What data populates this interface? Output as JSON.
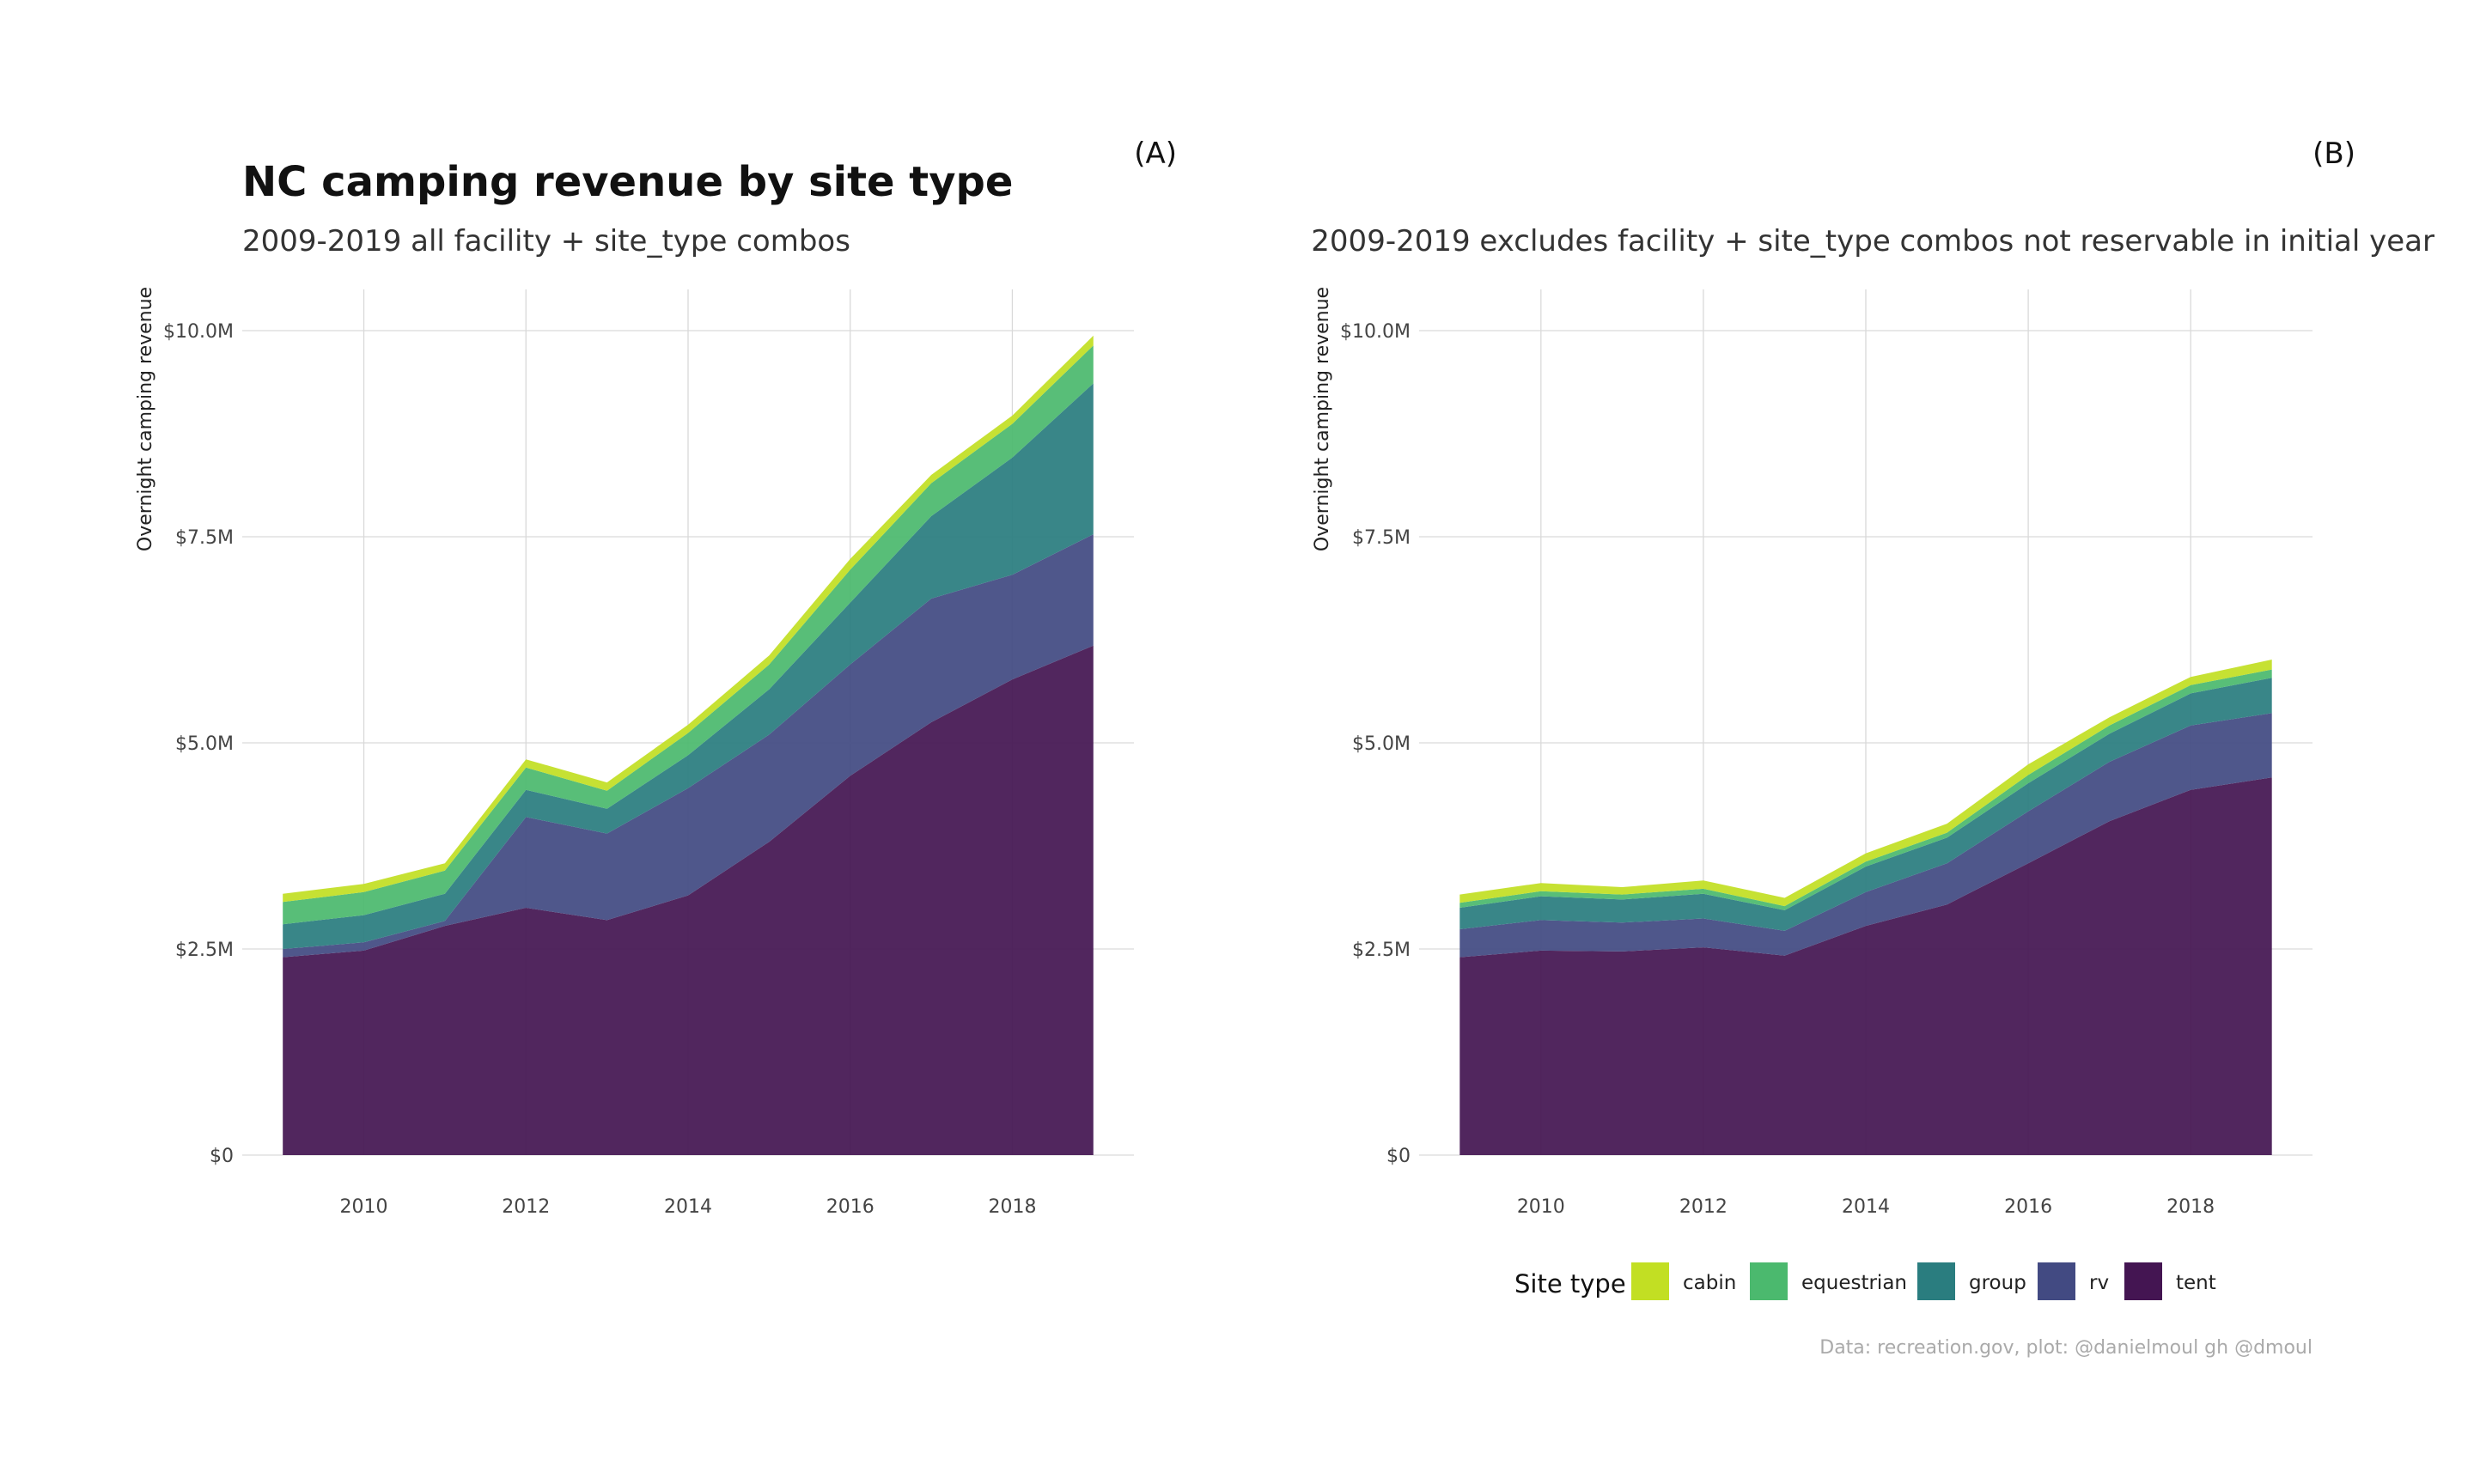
{
  "chart_data": [
    {
      "type": "area",
      "panel": "A",
      "tag": "(A)",
      "title": "NC camping revenue by site type",
      "subtitle": "2009-2019 all facility + site_type combos",
      "ylabel": "Overnight camping revenue",
      "xlabel": "",
      "ylim": [
        0,
        10.5
      ],
      "xlim": [
        2008.5,
        2019.5
      ],
      "x_ticks": [
        2010,
        2012,
        2014,
        2016,
        2018
      ],
      "y_ticks": [
        {
          "value": 0,
          "label": "$0"
        },
        {
          "value": 2.5,
          "label": "$2.5M"
        },
        {
          "value": 5,
          "label": "$5.0M"
        },
        {
          "value": 7.5,
          "label": "$7.5M"
        },
        {
          "value": 10,
          "label": "$10.0M"
        }
      ],
      "grid": true,
      "stacked": true,
      "units": "millions USD",
      "x": [
        2009,
        2010,
        2011,
        2012,
        2013,
        2014,
        2015,
        2016,
        2017,
        2018,
        2019
      ],
      "series": [
        {
          "name": "tent",
          "values": [
            2.4,
            2.48,
            2.78,
            3.0,
            2.85,
            3.15,
            3.8,
            4.6,
            5.25,
            5.77,
            6.18
          ]
        },
        {
          "name": "rv",
          "values": [
            0.1,
            0.1,
            0.06,
            1.1,
            1.05,
            1.3,
            1.3,
            1.35,
            1.5,
            1.27,
            1.35
          ]
        },
        {
          "name": "group",
          "values": [
            0.3,
            0.33,
            0.33,
            0.33,
            0.3,
            0.4,
            0.55,
            0.75,
            1.0,
            1.42,
            1.83
          ]
        },
        {
          "name": "equestrian",
          "values": [
            0.27,
            0.28,
            0.28,
            0.27,
            0.22,
            0.27,
            0.3,
            0.4,
            0.4,
            0.41,
            0.46
          ]
        },
        {
          "name": "cabin",
          "values": [
            0.1,
            0.1,
            0.09,
            0.1,
            0.1,
            0.1,
            0.11,
            0.13,
            0.1,
            0.1,
            0.12
          ]
        }
      ]
    },
    {
      "type": "area",
      "panel": "B",
      "tag": "(B)",
      "title": "",
      "subtitle": "2009-2019 excludes facility + site_type combos not reservable in initial year",
      "ylabel": "Overnight camping revenue",
      "xlabel": "",
      "ylim": [
        0,
        10.5
      ],
      "xlim": [
        2008.5,
        2019.5
      ],
      "x_ticks": [
        2010,
        2012,
        2014,
        2016,
        2018
      ],
      "y_ticks": [
        {
          "value": 0,
          "label": "$0"
        },
        {
          "value": 2.5,
          "label": "$2.5M"
        },
        {
          "value": 5,
          "label": "$5.0M"
        },
        {
          "value": 7.5,
          "label": "$7.5M"
        },
        {
          "value": 10,
          "label": "$10.0M"
        }
      ],
      "grid": true,
      "stacked": true,
      "units": "millions USD",
      "x": [
        2009,
        2010,
        2011,
        2012,
        2013,
        2014,
        2015,
        2016,
        2017,
        2018,
        2019
      ],
      "series": [
        {
          "name": "tent",
          "values": [
            2.4,
            2.48,
            2.47,
            2.52,
            2.42,
            2.78,
            3.04,
            3.54,
            4.05,
            4.43,
            4.58
          ]
        },
        {
          "name": "rv",
          "values": [
            0.34,
            0.37,
            0.35,
            0.35,
            0.3,
            0.41,
            0.5,
            0.63,
            0.72,
            0.78,
            0.78
          ]
        },
        {
          "name": "group",
          "values": [
            0.26,
            0.29,
            0.28,
            0.3,
            0.25,
            0.31,
            0.31,
            0.34,
            0.34,
            0.39,
            0.43
          ]
        },
        {
          "name": "equestrian",
          "values": [
            0.06,
            0.06,
            0.06,
            0.06,
            0.05,
            0.06,
            0.06,
            0.1,
            0.1,
            0.1,
            0.1
          ]
        },
        {
          "name": "cabin",
          "values": [
            0.1,
            0.1,
            0.09,
            0.1,
            0.1,
            0.1,
            0.11,
            0.13,
            0.1,
            0.1,
            0.12
          ]
        }
      ]
    }
  ],
  "legend": {
    "title": "Site type",
    "placement": "bottom",
    "items": [
      {
        "key": "cabin",
        "label": "cabin",
        "color": "#C2DF23"
      },
      {
        "key": "equestrian",
        "label": "equestrian",
        "color": "#4BB96E"
      },
      {
        "key": "group",
        "label": "group",
        "color": "#2A7D7F"
      },
      {
        "key": "rv",
        "label": "rv",
        "color": "#424A82"
      },
      {
        "key": "tent",
        "label": "tent",
        "color": "#441552"
      }
    ]
  },
  "caption": "Data: recreation.gov, plot: @danielmoul gh @dmoul"
}
